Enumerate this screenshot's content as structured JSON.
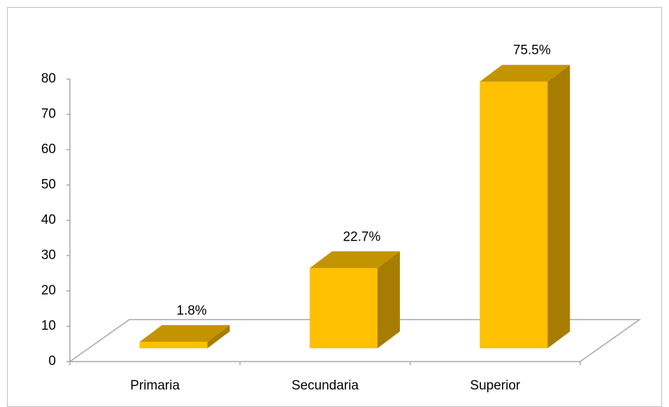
{
  "chart_data": {
    "type": "bar3d",
    "categories": [
      "Primaria",
      "Secundaria",
      "Superior"
    ],
    "values": [
      1.8,
      22.7,
      75.5
    ],
    "value_labels": [
      "1.8%",
      "22.7%",
      "75.5%"
    ],
    "color": "#ffc000",
    "ylim": [
      0,
      80
    ],
    "yticks": [
      0,
      10,
      20,
      30,
      40,
      50,
      60,
      70,
      80
    ],
    "grid": false
  }
}
